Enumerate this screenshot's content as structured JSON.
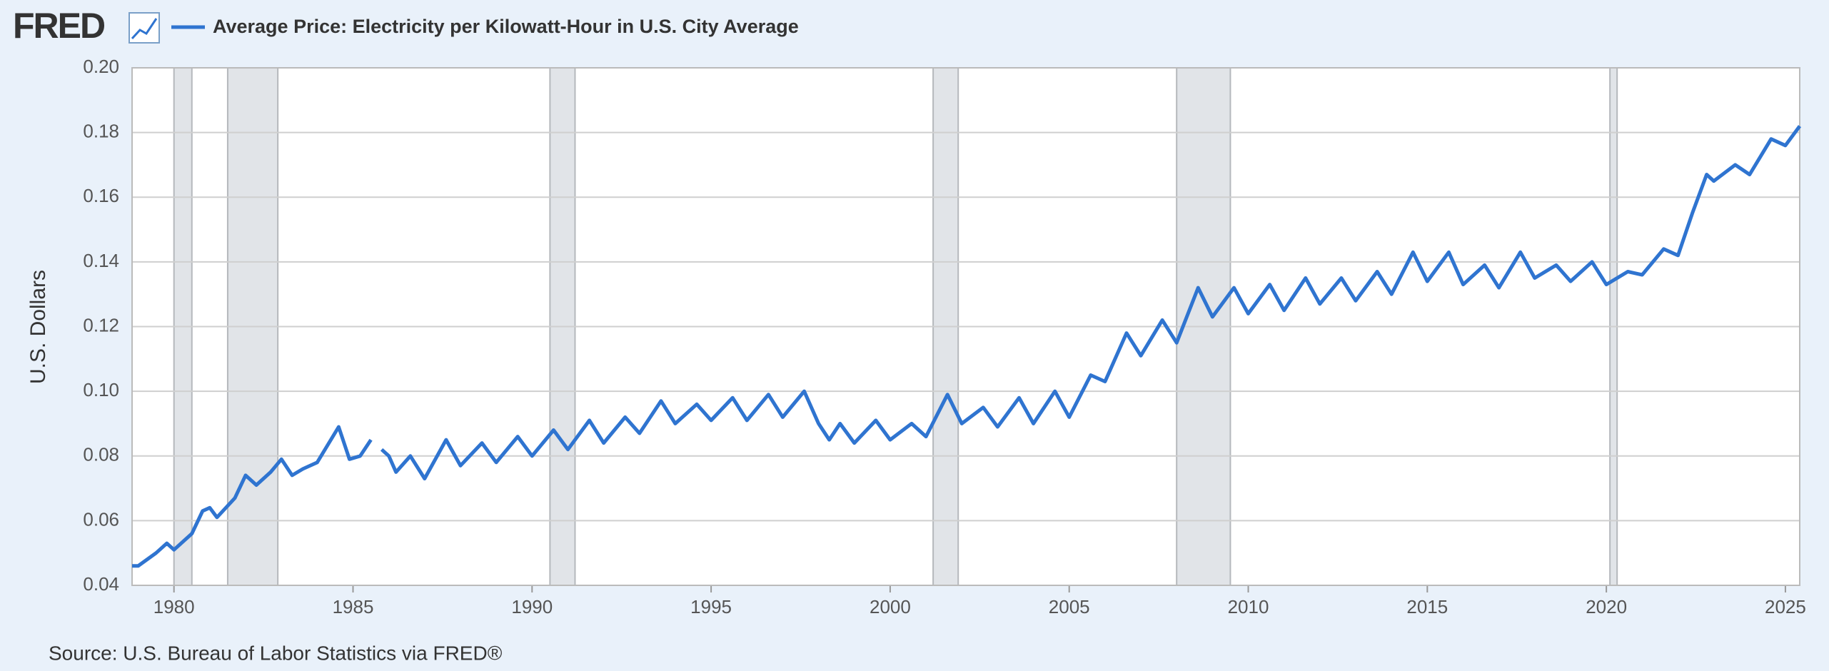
{
  "header": {
    "logo": "FRED"
  },
  "chart_data": {
    "type": "line",
    "y_label": "U.S. Dollars",
    "source": "Source: U.S. Bureau of Labor Statistics via FRED®",
    "x": [
      1978.83,
      1979.0,
      1979.5,
      1979.8,
      1980.0,
      1980.5,
      1980.8,
      1981.0,
      1981.2,
      1981.7,
      1982.0,
      1982.3,
      1982.7,
      1983.0,
      1983.3,
      1983.6,
      1984.0,
      1984.6,
      1984.9,
      1985.2,
      1985.5,
      1985.6,
      1985.8,
      1986.0,
      1986.2,
      1986.6,
      1987.0,
      1987.6,
      1988.0,
      1988.6,
      1989.0,
      1989.6,
      1990.0,
      1990.6,
      1991.0,
      1991.6,
      1992.0,
      1992.6,
      1993.0,
      1993.6,
      1994.0,
      1994.6,
      1995.0,
      1995.6,
      1996.0,
      1996.6,
      1997.0,
      1997.6,
      1998.0,
      1998.3,
      1998.6,
      1999.0,
      1999.6,
      2000.0,
      2000.6,
      2001.0,
      2001.6,
      2002.0,
      2002.6,
      2003.0,
      2003.6,
      2004.0,
      2004.6,
      2005.0,
      2005.6,
      2006.0,
      2006.6,
      2007.0,
      2007.6,
      2008.0,
      2008.6,
      2009.0,
      2009.6,
      2010.0,
      2010.6,
      2011.0,
      2011.6,
      2012.0,
      2012.6,
      2013.0,
      2013.6,
      2014.0,
      2014.6,
      2015.0,
      2015.6,
      2016.0,
      2016.6,
      2017.0,
      2017.6,
      2018.0,
      2018.6,
      2019.0,
      2019.6,
      2020.0,
      2020.6,
      2021.0,
      2021.6,
      2022.0,
      2022.4,
      2022.8,
      2023.0,
      2023.6,
      2024.0,
      2024.6,
      2025.0,
      2025.4
    ],
    "series": [
      {
        "name": "Average Price: Electricity per Kilowatt-Hour in U.S. City Average",
        "color": "#2f74d0",
        "values": [
          0.046,
          0.046,
          0.05,
          0.053,
          0.051,
          0.056,
          0.063,
          0.064,
          0.061,
          0.067,
          0.074,
          0.071,
          0.075,
          0.079,
          0.074,
          0.076,
          0.078,
          0.089,
          0.079,
          0.08,
          0.085,
          null,
          0.082,
          0.08,
          0.075,
          0.08,
          0.073,
          0.085,
          0.077,
          0.084,
          0.078,
          0.086,
          0.08,
          0.088,
          0.082,
          0.091,
          0.084,
          0.092,
          0.087,
          0.097,
          0.09,
          0.096,
          0.091,
          0.098,
          0.091,
          0.099,
          0.092,
          0.1,
          0.09,
          0.085,
          0.09,
          0.084,
          0.091,
          0.085,
          0.09,
          0.086,
          0.099,
          0.09,
          0.095,
          0.089,
          0.098,
          0.09,
          0.1,
          0.092,
          0.105,
          0.103,
          0.118,
          0.111,
          0.122,
          0.115,
          0.132,
          0.123,
          0.132,
          0.124,
          0.133,
          0.125,
          0.135,
          0.127,
          0.135,
          0.128,
          0.137,
          0.13,
          0.143,
          0.134,
          0.143,
          0.133,
          0.139,
          0.132,
          0.143,
          0.135,
          0.139,
          0.134,
          0.14,
          0.133,
          0.137,
          0.136,
          0.144,
          0.142,
          0.155,
          0.167,
          0.165,
          0.17,
          0.167,
          0.178,
          0.176,
          0.182
        ]
      }
    ],
    "recessions": [
      [
        1980.0,
        1980.5
      ],
      [
        1981.5,
        1982.9
      ],
      [
        1990.5,
        1991.2
      ],
      [
        2001.2,
        2001.9
      ],
      [
        2008.0,
        2009.5
      ],
      [
        2020.1,
        2020.3
      ]
    ],
    "xlim": [
      1978.83,
      2025.4
    ],
    "xticks": [
      1980,
      1985,
      1990,
      1995,
      2000,
      2005,
      2010,
      2015,
      2020,
      2025
    ],
    "ylim": [
      0.04,
      0.2
    ],
    "yticks": [
      0.04,
      0.06,
      0.08,
      {
        "value": 0.1,
        "label": "0.10"
      },
      0.12,
      0.14,
      0.16,
      0.18,
      {
        "value": 0.2,
        "label": "0.20"
      }
    ],
    "grid": true
  }
}
